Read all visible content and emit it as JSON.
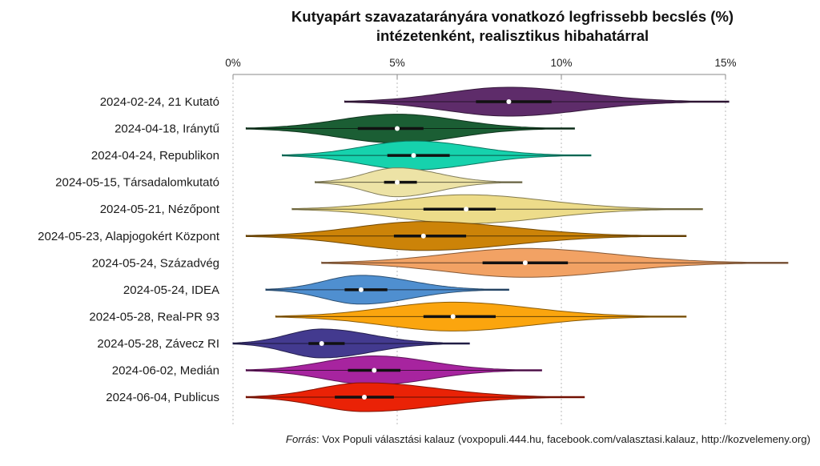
{
  "chart_data": {
    "type": "violin",
    "title": "Kutyapárt szavazatarányára vonatkozó legfrissebb becslés (%)",
    "subtitle": "intézetenként, realisztikus hibahatárral",
    "xlabel": "",
    "ylabel": "",
    "xlim": [
      0,
      15
    ],
    "x_ticks": [
      0,
      5,
      10,
      15
    ],
    "x_tick_labels": [
      "0%",
      "5%",
      "10%",
      "15%"
    ],
    "grid": "vertical dotted at ticks",
    "legend": "none",
    "categories": [
      "2024-02-24, 21 Kutató",
      "2024-04-18, Iránytű",
      "2024-04-24, Republikon",
      "2024-05-15, Társadalomkutató",
      "2024-05-21, Nézőpont",
      "2024-05-23, Alapjogokért Központ",
      "2024-05-24, Századvég",
      "2024-05-24, IDEA",
      "2024-05-28, Real-PR 93",
      "2024-05-28, Závecz RI",
      "2024-06-02, Medián",
      "2024-06-04, Publicus"
    ],
    "series": [
      {
        "name": "2024-02-24, 21 Kutató",
        "color": "#5e2c6a",
        "min": 3.4,
        "q1": 7.4,
        "median": 8.4,
        "q3": 9.7,
        "max": 15.1
      },
      {
        "name": "2024-04-18, Iránytű",
        "color": "#1b5e34",
        "min": 0.4,
        "q1": 3.8,
        "median": 5.0,
        "q3": 5.8,
        "max": 10.4
      },
      {
        "name": "2024-04-24, Republikon",
        "color": "#16d2ad",
        "min": 1.5,
        "q1": 4.7,
        "median": 5.5,
        "q3": 6.6,
        "max": 10.9
      },
      {
        "name": "2024-05-15, Társadalomkutató",
        "color": "#ede3a6",
        "min": 2.5,
        "q1": 4.6,
        "median": 5.0,
        "q3": 5.6,
        "max": 8.8
      },
      {
        "name": "2024-05-21, Nézőpont",
        "color": "#eddc8a",
        "min": 1.8,
        "q1": 5.8,
        "median": 7.1,
        "q3": 8.0,
        "max": 14.3
      },
      {
        "name": "2024-05-23, Alapjogokért Központ",
        "color": "#cc8308",
        "min": 0.4,
        "q1": 4.9,
        "median": 5.8,
        "q3": 7.1,
        "max": 13.8
      },
      {
        "name": "2024-05-24, Századvég",
        "color": "#f2a264",
        "min": 2.7,
        "q1": 7.6,
        "median": 8.9,
        "q3": 10.2,
        "max": 16.9
      },
      {
        "name": "2024-05-24, IDEA",
        "color": "#4f8fd0",
        "min": 1.0,
        "q1": 3.4,
        "median": 3.9,
        "q3": 4.7,
        "max": 8.4
      },
      {
        "name": "2024-05-28, Real-PR 93",
        "color": "#fba50e",
        "min": 1.3,
        "q1": 5.8,
        "median": 6.7,
        "q3": 8.0,
        "max": 13.8
      },
      {
        "name": "2024-05-28, Závecz RI",
        "color": "#433a8f",
        "min": 0.0,
        "q1": 2.3,
        "median": 2.7,
        "q3": 3.4,
        "max": 7.2
      },
      {
        "name": "2024-06-02, Medián",
        "color": "#a7249f",
        "min": 0.4,
        "q1": 3.5,
        "median": 4.3,
        "q3": 5.1,
        "max": 9.4
      },
      {
        "name": "2024-06-04, Publicus",
        "color": "#ea2206",
        "min": 0.4,
        "q1": 3.1,
        "median": 4.0,
        "q3": 4.9,
        "max": 10.7
      }
    ]
  },
  "source": {
    "label": "Forrás",
    "text": ": Vox Populi választási kalauz (voxpopuli.444.hu, facebook.com/valasztasi.kalauz, http://kozvelemeny.org)"
  }
}
